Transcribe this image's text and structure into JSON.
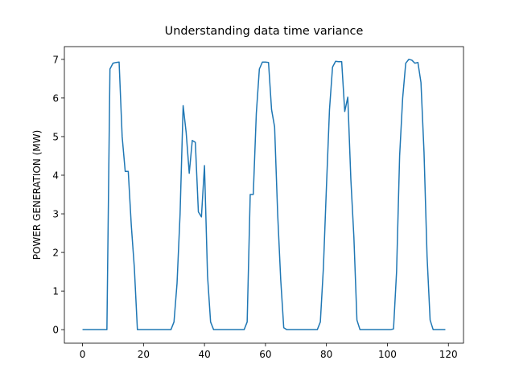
{
  "chart_data": {
    "type": "line",
    "title": "Understanding data time variance",
    "y_label": "POWER GENERATION (MW)",
    "x": [
      0,
      1,
      2,
      3,
      4,
      5,
      6,
      7,
      8,
      9,
      10,
      11,
      12,
      13,
      14,
      15,
      16,
      17,
      18,
      19,
      20,
      21,
      22,
      23,
      24,
      25,
      26,
      27,
      28,
      29,
      30,
      31,
      32,
      33,
      34,
      35,
      36,
      37,
      38,
      39,
      40,
      41,
      42,
      43,
      44,
      45,
      46,
      47,
      48,
      49,
      50,
      51,
      52,
      53,
      54,
      55,
      56,
      57,
      58,
      59,
      60,
      61,
      62,
      63,
      64,
      65,
      66,
      67,
      68,
      69,
      70,
      71,
      72,
      73,
      74,
      75,
      76,
      77,
      78,
      79,
      80,
      81,
      82,
      83,
      84,
      85,
      86,
      87,
      88,
      89,
      90,
      91,
      92,
      93,
      94,
      95,
      96,
      97,
      98,
      99,
      100,
      101,
      102,
      103,
      104,
      105,
      106,
      107,
      108,
      109,
      110,
      111,
      112,
      113,
      114,
      115,
      116,
      117,
      118,
      119
    ],
    "series": [
      {
        "color": "#1f77b4",
        "values": [
          0,
          0,
          0,
          0,
          0,
          0,
          0,
          0,
          0,
          6.75,
          6.9,
          6.92,
          6.93,
          5.0,
          4.1,
          4.1,
          2.7,
          1.6,
          0,
          0,
          0,
          0,
          0,
          0,
          0,
          0,
          0,
          0,
          0,
          0,
          0.2,
          1.2,
          3.0,
          5.8,
          5.1,
          4.05,
          4.9,
          4.85,
          3.05,
          2.92,
          4.25,
          1.4,
          0.2,
          0,
          0,
          0,
          0,
          0,
          0,
          0,
          0,
          0,
          0,
          0,
          0.2,
          3.5,
          3.5,
          5.6,
          6.75,
          6.93,
          6.93,
          6.92,
          5.7,
          5.25,
          3.0,
          1.3,
          0.05,
          0,
          0,
          0,
          0,
          0,
          0,
          0,
          0,
          0,
          0,
          0,
          0.2,
          1.6,
          3.7,
          5.7,
          6.8,
          6.95,
          6.94,
          6.94,
          5.65,
          6.02,
          3.9,
          2.4,
          0.25,
          0,
          0,
          0,
          0,
          0,
          0,
          0,
          0,
          0,
          0,
          0,
          0.02,
          1.5,
          4.5,
          6.0,
          6.9,
          7.0,
          6.98,
          6.9,
          6.92,
          6.4,
          4.6,
          1.9,
          0.25,
          0,
          0,
          0,
          0,
          0
        ]
      }
    ],
    "xlim": [
      -5.95,
      124.95
    ],
    "xticks": [
      0,
      20,
      40,
      60,
      80,
      100,
      120
    ],
    "ylim": [
      -0.35,
      7.33
    ],
    "yticks": [
      0,
      1,
      2,
      3,
      4,
      5,
      6,
      7
    ]
  }
}
